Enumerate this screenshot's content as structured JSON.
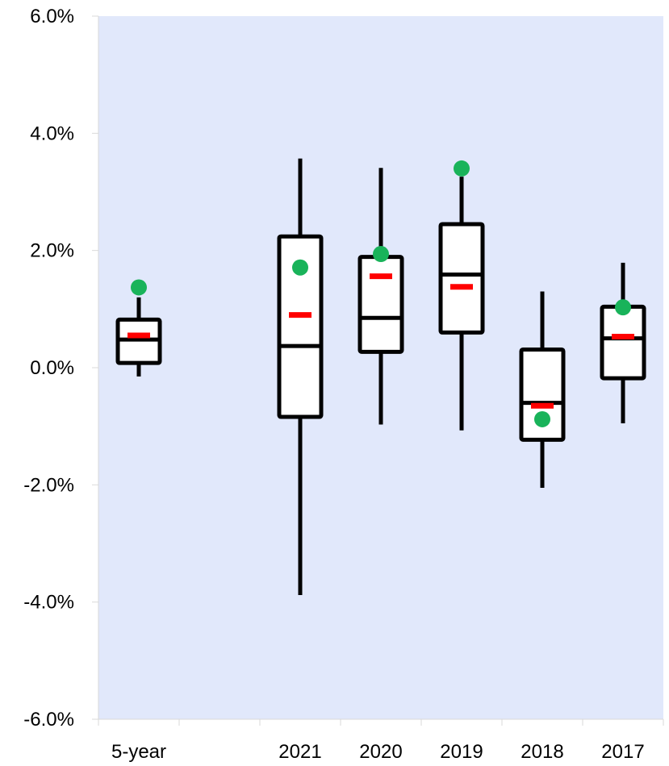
{
  "chart_data": {
    "type": "box",
    "categories": [
      "5-year",
      "",
      "2021",
      "2020",
      "2019",
      "2018",
      "2017"
    ],
    "y_tick_labels": [
      "6.0%",
      "4.0%",
      "2.0%",
      "0.0%",
      "-2.0%",
      "-4.0%",
      "-6.0%"
    ],
    "y_ticks": [
      6,
      4,
      2,
      0,
      -2,
      -4,
      -6
    ],
    "ylim": [
      -6,
      6
    ],
    "y_unit": "percent",
    "grid": false,
    "title": "",
    "xlabel": "",
    "ylabel": "",
    "boxes": [
      {
        "category": "5-year",
        "min": -0.15,
        "q1": 0.08,
        "median": 0.48,
        "q3": 0.82,
        "max": 1.2,
        "mean": 0.55,
        "marker": 1.37
      },
      {
        "category": "2021",
        "min": -3.88,
        "q1": -0.84,
        "median": 0.37,
        "q3": 2.24,
        "max": 3.57,
        "mean": 0.9,
        "marker": 1.71
      },
      {
        "category": "2020",
        "min": -0.97,
        "q1": 0.27,
        "median": 0.85,
        "q3": 1.89,
        "max": 3.41,
        "mean": 1.56,
        "marker": 1.94
      },
      {
        "category": "2019",
        "min": -1.07,
        "q1": 0.6,
        "median": 1.59,
        "q3": 2.45,
        "max": 3.26,
        "mean": 1.38,
        "marker": 3.4
      },
      {
        "category": "2018",
        "min": -2.05,
        "q1": -1.23,
        "median": -0.6,
        "q3": 0.31,
        "max": 1.3,
        "mean": -0.65,
        "marker": -0.88
      },
      {
        "category": "2017",
        "min": -0.95,
        "q1": -0.18,
        "median": 0.5,
        "q3": 1.04,
        "max": 1.79,
        "mean": 0.53,
        "marker": 1.03
      }
    ],
    "colors": {
      "plot_background": "#E1E8FB",
      "box_stroke": "#000000",
      "box_fill": "#FFFFFF",
      "mean_marker": "#FF0000",
      "point_marker": "#19B35A"
    }
  }
}
